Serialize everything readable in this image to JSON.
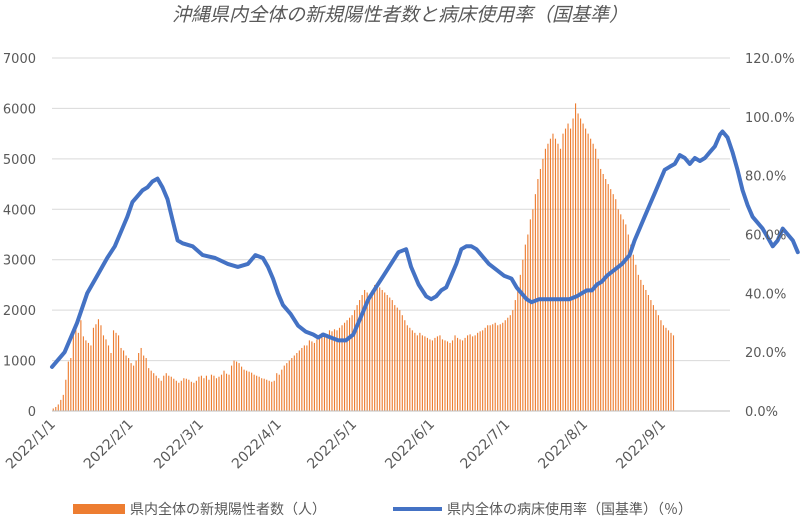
{
  "chart_data": {
    "type": "bar+line",
    "title": "沖縄県内全体の新規陽性者数と病床使用率（国基準）",
    "x_ticks": [
      "2022/1/1",
      "2022/2/1",
      "2022/3/1",
      "2022/4/1",
      "2022/5/1",
      "2022/6/1",
      "2022/7/1",
      "2022/8/1",
      "2022/9/1"
    ],
    "y_left": {
      "min": 0,
      "max": 7000,
      "ticks": [
        "0",
        "1000",
        "2000",
        "3000",
        "4000",
        "5000",
        "6000",
        "7000"
      ]
    },
    "y_right": {
      "min": 0,
      "max": 120,
      "ticks": [
        "0.0%",
        "20.0%",
        "40.0%",
        "60.0%",
        "80.0%",
        "100.0%",
        "120.0%"
      ]
    },
    "grid": true,
    "legend_position": "bottom",
    "colors": {
      "bars": "#ED7D31",
      "line": "#4472C4",
      "grid": "#D9D9D9",
      "text": "#595959"
    },
    "series": [
      {
        "name": "県内全体の新規陽性者数（人）",
        "type": "bar",
        "axis": "left",
        "date_start": "2022-01-01",
        "values": [
          50,
          80,
          130,
          220,
          320,
          620,
          980,
          1050,
          1500,
          1650,
          1550,
          1800,
          1480,
          1400,
          1350,
          1300,
          1650,
          1720,
          1820,
          1700,
          1500,
          1420,
          1300,
          1150,
          1600,
          1550,
          1500,
          1250,
          1200,
          1100,
          1050,
          950,
          900,
          1000,
          1150,
          1250,
          1100,
          1050,
          850,
          800,
          750,
          700,
          650,
          600,
          700,
          750,
          700,
          680,
          640,
          600,
          560,
          600,
          650,
          640,
          620,
          580,
          560,
          600,
          680,
          700,
          650,
          700,
          620,
          720,
          700,
          650,
          680,
          720,
          800,
          740,
          720,
          900,
          1000,
          980,
          950,
          880,
          820,
          800,
          780,
          760,
          720,
          700,
          680,
          650,
          640,
          620,
          600,
          580,
          600,
          750,
          720,
          820,
          900,
          950,
          1000,
          1050,
          1100,
          1150,
          1200,
          1250,
          1300,
          1300,
          1400,
          1380,
          1350,
          1420,
          1500,
          1550,
          1520,
          1480,
          1600,
          1580,
          1620,
          1600,
          1650,
          1700,
          1750,
          1800,
          1850,
          1900,
          2000,
          2100,
          2200,
          2300,
          2400,
          2350,
          2300,
          2400,
          2500,
          2500,
          2450,
          2400,
          2350,
          2300,
          2250,
          2200,
          2100,
          2050,
          2000,
          1900,
          1800,
          1700,
          1650,
          1600,
          1550,
          1500,
          1550,
          1500,
          1480,
          1450,
          1420,
          1400,
          1450,
          1480,
          1500,
          1420,
          1400,
          1380,
          1350,
          1400,
          1500,
          1450,
          1420,
          1400,
          1450,
          1500,
          1520,
          1480,
          1500,
          1550,
          1580,
          1600,
          1650,
          1700,
          1700,
          1720,
          1750,
          1700,
          1720,
          1750,
          1800,
          1850,
          1900,
          2000,
          2200,
          2400,
          2700,
          3000,
          3300,
          3500,
          3800,
          4000,
          4300,
          4600,
          4800,
          5000,
          5200,
          5300,
          5400,
          5500,
          5400,
          5300,
          5200,
          5500,
          5600,
          5700,
          5600,
          5800,
          6100,
          5900,
          5800,
          5700,
          5600,
          5500,
          5400,
          5300,
          5200,
          5000,
          4800,
          4700,
          4600,
          4500,
          4400,
          4300,
          4200,
          4000,
          3900,
          3800,
          3700,
          3500,
          3300,
          3100,
          2900,
          2700,
          2600,
          2500,
          2400,
          2300,
          2200,
          2100,
          2000,
          1900,
          1800,
          1700,
          1650,
          1600,
          1550,
          1500
        ]
      },
      {
        "name": "県内全体の病床使用率（国基準）（％）",
        "type": "line",
        "axis": "right",
        "points": [
          [
            0,
            15
          ],
          [
            5,
            20
          ],
          [
            10,
            30
          ],
          [
            14,
            40
          ],
          [
            18,
            46
          ],
          [
            22,
            52
          ],
          [
            25,
            56
          ],
          [
            28,
            62
          ],
          [
            30,
            66
          ],
          [
            32,
            71
          ],
          [
            34,
            73
          ],
          [
            36,
            75
          ],
          [
            38,
            76
          ],
          [
            40,
            78
          ],
          [
            42,
            79
          ],
          [
            44,
            76
          ],
          [
            46,
            72
          ],
          [
            48,
            65
          ],
          [
            50,
            58
          ],
          [
            52,
            57
          ],
          [
            56,
            56
          ],
          [
            60,
            53
          ],
          [
            65,
            52
          ],
          [
            70,
            50
          ],
          [
            74,
            49
          ],
          [
            78,
            50
          ],
          [
            81,
            53
          ],
          [
            84,
            52
          ],
          [
            86,
            49
          ],
          [
            88,
            45
          ],
          [
            90,
            40
          ],
          [
            92,
            36
          ],
          [
            95,
            33
          ],
          [
            98,
            29
          ],
          [
            101,
            27
          ],
          [
            104,
            26
          ],
          [
            106,
            25
          ],
          [
            108,
            26
          ],
          [
            111,
            25
          ],
          [
            114,
            24
          ],
          [
            117,
            24
          ],
          [
            120,
            26
          ],
          [
            123,
            32
          ],
          [
            126,
            38
          ],
          [
            129,
            42
          ],
          [
            132,
            46
          ],
          [
            135,
            50
          ],
          [
            138,
            54
          ],
          [
            141,
            55
          ],
          [
            143,
            49
          ],
          [
            146,
            43
          ],
          [
            149,
            39
          ],
          [
            151,
            38
          ],
          [
            153,
            39
          ],
          [
            155,
            41
          ],
          [
            157,
            42
          ],
          [
            159,
            46
          ],
          [
            161,
            50
          ],
          [
            163,
            55
          ],
          [
            165,
            56
          ],
          [
            167,
            56
          ],
          [
            169,
            55
          ],
          [
            171,
            53
          ],
          [
            174,
            50
          ],
          [
            177,
            48
          ],
          [
            180,
            46
          ],
          [
            183,
            45
          ],
          [
            185,
            42
          ],
          [
            187,
            40
          ],
          [
            189,
            38
          ],
          [
            191,
            37
          ],
          [
            194,
            38
          ],
          [
            197,
            38
          ],
          [
            200,
            38
          ],
          [
            203,
            38
          ],
          [
            206,
            38
          ],
          [
            209,
            39
          ],
          [
            211,
            40
          ],
          [
            213,
            41
          ],
          [
            215,
            41
          ],
          [
            217,
            43
          ],
          [
            219,
            44
          ],
          [
            221,
            46
          ],
          [
            224,
            48
          ],
          [
            227,
            50
          ],
          [
            230,
            53
          ],
          [
            232,
            58
          ],
          [
            234,
            62
          ],
          [
            236,
            66
          ],
          [
            238,
            70
          ],
          [
            240,
            74
          ],
          [
            242,
            78
          ],
          [
            244,
            82
          ],
          [
            246,
            83
          ],
          [
            248,
            84
          ],
          [
            250,
            87
          ],
          [
            252,
            86
          ],
          [
            254,
            84
          ],
          [
            256,
            86
          ],
          [
            258,
            85
          ],
          [
            260,
            86
          ],
          [
            262,
            88
          ],
          [
            264,
            90
          ],
          [
            266,
            94
          ],
          [
            267,
            95
          ],
          [
            269,
            93
          ],
          [
            271,
            88
          ],
          [
            273,
            82
          ],
          [
            275,
            75
          ],
          [
            277,
            70
          ],
          [
            279,
            66
          ],
          [
            281,
            64
          ],
          [
            283,
            62
          ],
          [
            285,
            59
          ],
          [
            287,
            56
          ],
          [
            289,
            58
          ],
          [
            291,
            62
          ],
          [
            293,
            60
          ],
          [
            295,
            58
          ],
          [
            297,
            54
          ]
        ]
      }
    ]
  }
}
